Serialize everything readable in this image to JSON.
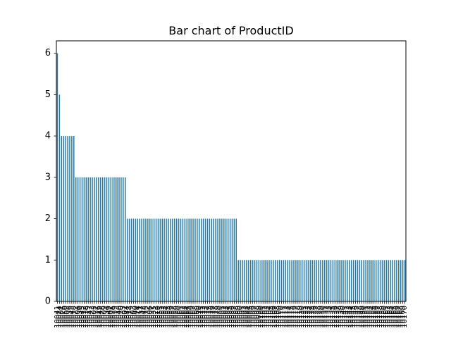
{
  "chart_data": {
    "type": "bar",
    "title": "Bar chart of ProductID",
    "xlabel": "",
    "ylabel": "",
    "ylim": [
      0,
      6.3
    ],
    "yticks": [
      0,
      1,
      2,
      3,
      4,
      5,
      6
    ],
    "bar_color": "#1f77b4",
    "categories": [
      "10041",
      "10014",
      "10001",
      "10026",
      "10050",
      "10008",
      "10036",
      "10043",
      "10018",
      "10022",
      "10004",
      "10030",
      "10045",
      "10012",
      "10038",
      "10019",
      "10047",
      "10023",
      "10005",
      "10031",
      "10016",
      "10042",
      "10028",
      "10009",
      "10034",
      "10049",
      "10002",
      "10025",
      "10039",
      "10013",
      "10046",
      "10020",
      "10033",
      "10007",
      "10044",
      "10017",
      "10029",
      "10003",
      "10040",
      "10024",
      "10011",
      "10037",
      "10048",
      "10015",
      "10032",
      "10006",
      "10027",
      "10035",
      "10021",
      "10010",
      "10051",
      "10052",
      "10053",
      "10054",
      "10055",
      "10056",
      "10057",
      "10058",
      "10059",
      "10060",
      "10061",
      "10062",
      "10063",
      "10064",
      "10065",
      "10066",
      "10067",
      "10068",
      "10069",
      "10070",
      "10071",
      "10072",
      "10073",
      "10074",
      "10075",
      "10076",
      "10077",
      "10078",
      "10079",
      "10080",
      "10081",
      "10082",
      "10083",
      "10084",
      "10085",
      "10086",
      "10087",
      "10088",
      "10089",
      "10090",
      "10091",
      "10092",
      "10093",
      "10094",
      "10095",
      "10096",
      "10097",
      "10098",
      "10099",
      "10100",
      "10101",
      "10102",
      "10103",
      "10104",
      "10105",
      "10106",
      "10107",
      "10108",
      "10109",
      "10110",
      "10111",
      "10112",
      "10113",
      "10114",
      "10115",
      "10116",
      "10117",
      "10118",
      "10119",
      "10120",
      "10121",
      "10122",
      "10123",
      "10124",
      "10125",
      "10126",
      "10127",
      "10128",
      "10129",
      "10130",
      "10131",
      "10132",
      "10133",
      "10134",
      "10135",
      "10136",
      "10137",
      "10138",
      "10139",
      "10140",
      "10141",
      "10142",
      "10143",
      "10144",
      "10145",
      "10146",
      "10147",
      "10148",
      "10149",
      "10150",
      "10151",
      "10152",
      "10153",
      "10154",
      "10155",
      "10156",
      "10157",
      "10158",
      "10159",
      "10160",
      "10161",
      "10162",
      "10163",
      "10164",
      "10165",
      "10166",
      "10167",
      "10168",
      "10169",
      "10170"
    ],
    "values": [
      6,
      5,
      4,
      4,
      4,
      4,
      4,
      4,
      4,
      3,
      3,
      3,
      3,
      3,
      3,
      3,
      3,
      3,
      3,
      3,
      3,
      3,
      3,
      3,
      3,
      3,
      3,
      3,
      3,
      3,
      3,
      3,
      3,
      3,
      2,
      2,
      2,
      2,
      2,
      2,
      2,
      2,
      2,
      2,
      2,
      2,
      2,
      2,
      2,
      2,
      2,
      2,
      2,
      2,
      2,
      2,
      2,
      2,
      2,
      2,
      2,
      2,
      2,
      2,
      2,
      2,
      2,
      2,
      2,
      2,
      2,
      2,
      2,
      2,
      2,
      2,
      2,
      2,
      2,
      2,
      2,
      2,
      2,
      2,
      2,
      2,
      2,
      2,
      1,
      1,
      1,
      1,
      1,
      1,
      1,
      1,
      1,
      1,
      1,
      1,
      1,
      1,
      1,
      1,
      1,
      1,
      1,
      1,
      1,
      1,
      1,
      1,
      1,
      1,
      1,
      1,
      1,
      1,
      1,
      1,
      1,
      1,
      1,
      1,
      1,
      1,
      1,
      1,
      1,
      1,
      1,
      1,
      1,
      1,
      1,
      1,
      1,
      1,
      1,
      1,
      1,
      1,
      1,
      1,
      1,
      1,
      1,
      1,
      1,
      1,
      1,
      1,
      1,
      1,
      1,
      1,
      1,
      1,
      1,
      1,
      1,
      1,
      1,
      1,
      1,
      1,
      1,
      1,
      1,
      1
    ]
  }
}
